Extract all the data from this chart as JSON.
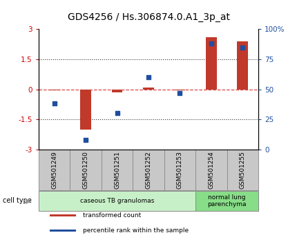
{
  "title": "GDS4256 / Hs.306874.0.A1_3p_at",
  "samples": [
    "GSM501249",
    "GSM501250",
    "GSM501251",
    "GSM501252",
    "GSM501253",
    "GSM501254",
    "GSM501255"
  ],
  "transformed_count": [
    -0.05,
    -2.0,
    -0.15,
    0.1,
    -0.05,
    2.6,
    2.4
  ],
  "percentile_rank": [
    38,
    8,
    30,
    60,
    47,
    88,
    85
  ],
  "ylim_left": [
    -3,
    3
  ],
  "ylim_right": [
    0,
    100
  ],
  "yticks_left": [
    -3,
    -1.5,
    0,
    1.5,
    3
  ],
  "ytick_labels_left": [
    "-3",
    "-1.5",
    "0",
    "1.5",
    "3"
  ],
  "yticks_right": [
    0,
    25,
    50,
    75,
    100
  ],
  "ytick_labels_right": [
    "0",
    "25",
    "50",
    "75",
    "100%"
  ],
  "hlines_dotted": [
    -1.5,
    1.5
  ],
  "bar_color": "#c0392b",
  "dot_color": "#1f4e9e",
  "dot_marker": "s",
  "dot_size": 22,
  "bar_width": 0.35,
  "cell_type_groups": [
    {
      "label": "caseous TB granulomas",
      "samples_idx": [
        0,
        4
      ],
      "color": "#c8f0c8"
    },
    {
      "label": "normal lung\nparenchyma",
      "samples_idx": [
        5,
        6
      ],
      "color": "#88dd88"
    }
  ],
  "legend_items": [
    {
      "color": "#c0392b",
      "label": "transformed count"
    },
    {
      "color": "#1f4e9e",
      "label": "percentile rank within the sample"
    }
  ],
  "cell_type_label": "cell type",
  "left_axis_color": "#cc0000",
  "right_axis_color": "#1f4e9e",
  "title_fontsize": 10,
  "tick_fontsize": 7.5,
  "sample_fontsize": 6.5,
  "cell_type_box_color": "#c8c8c8",
  "cell_type_box_edge": "#888888",
  "zero_line_color": "#dd4444",
  "zero_line_style": "--",
  "dotted_line_color": "#333333",
  "dotted_line_style": ":"
}
